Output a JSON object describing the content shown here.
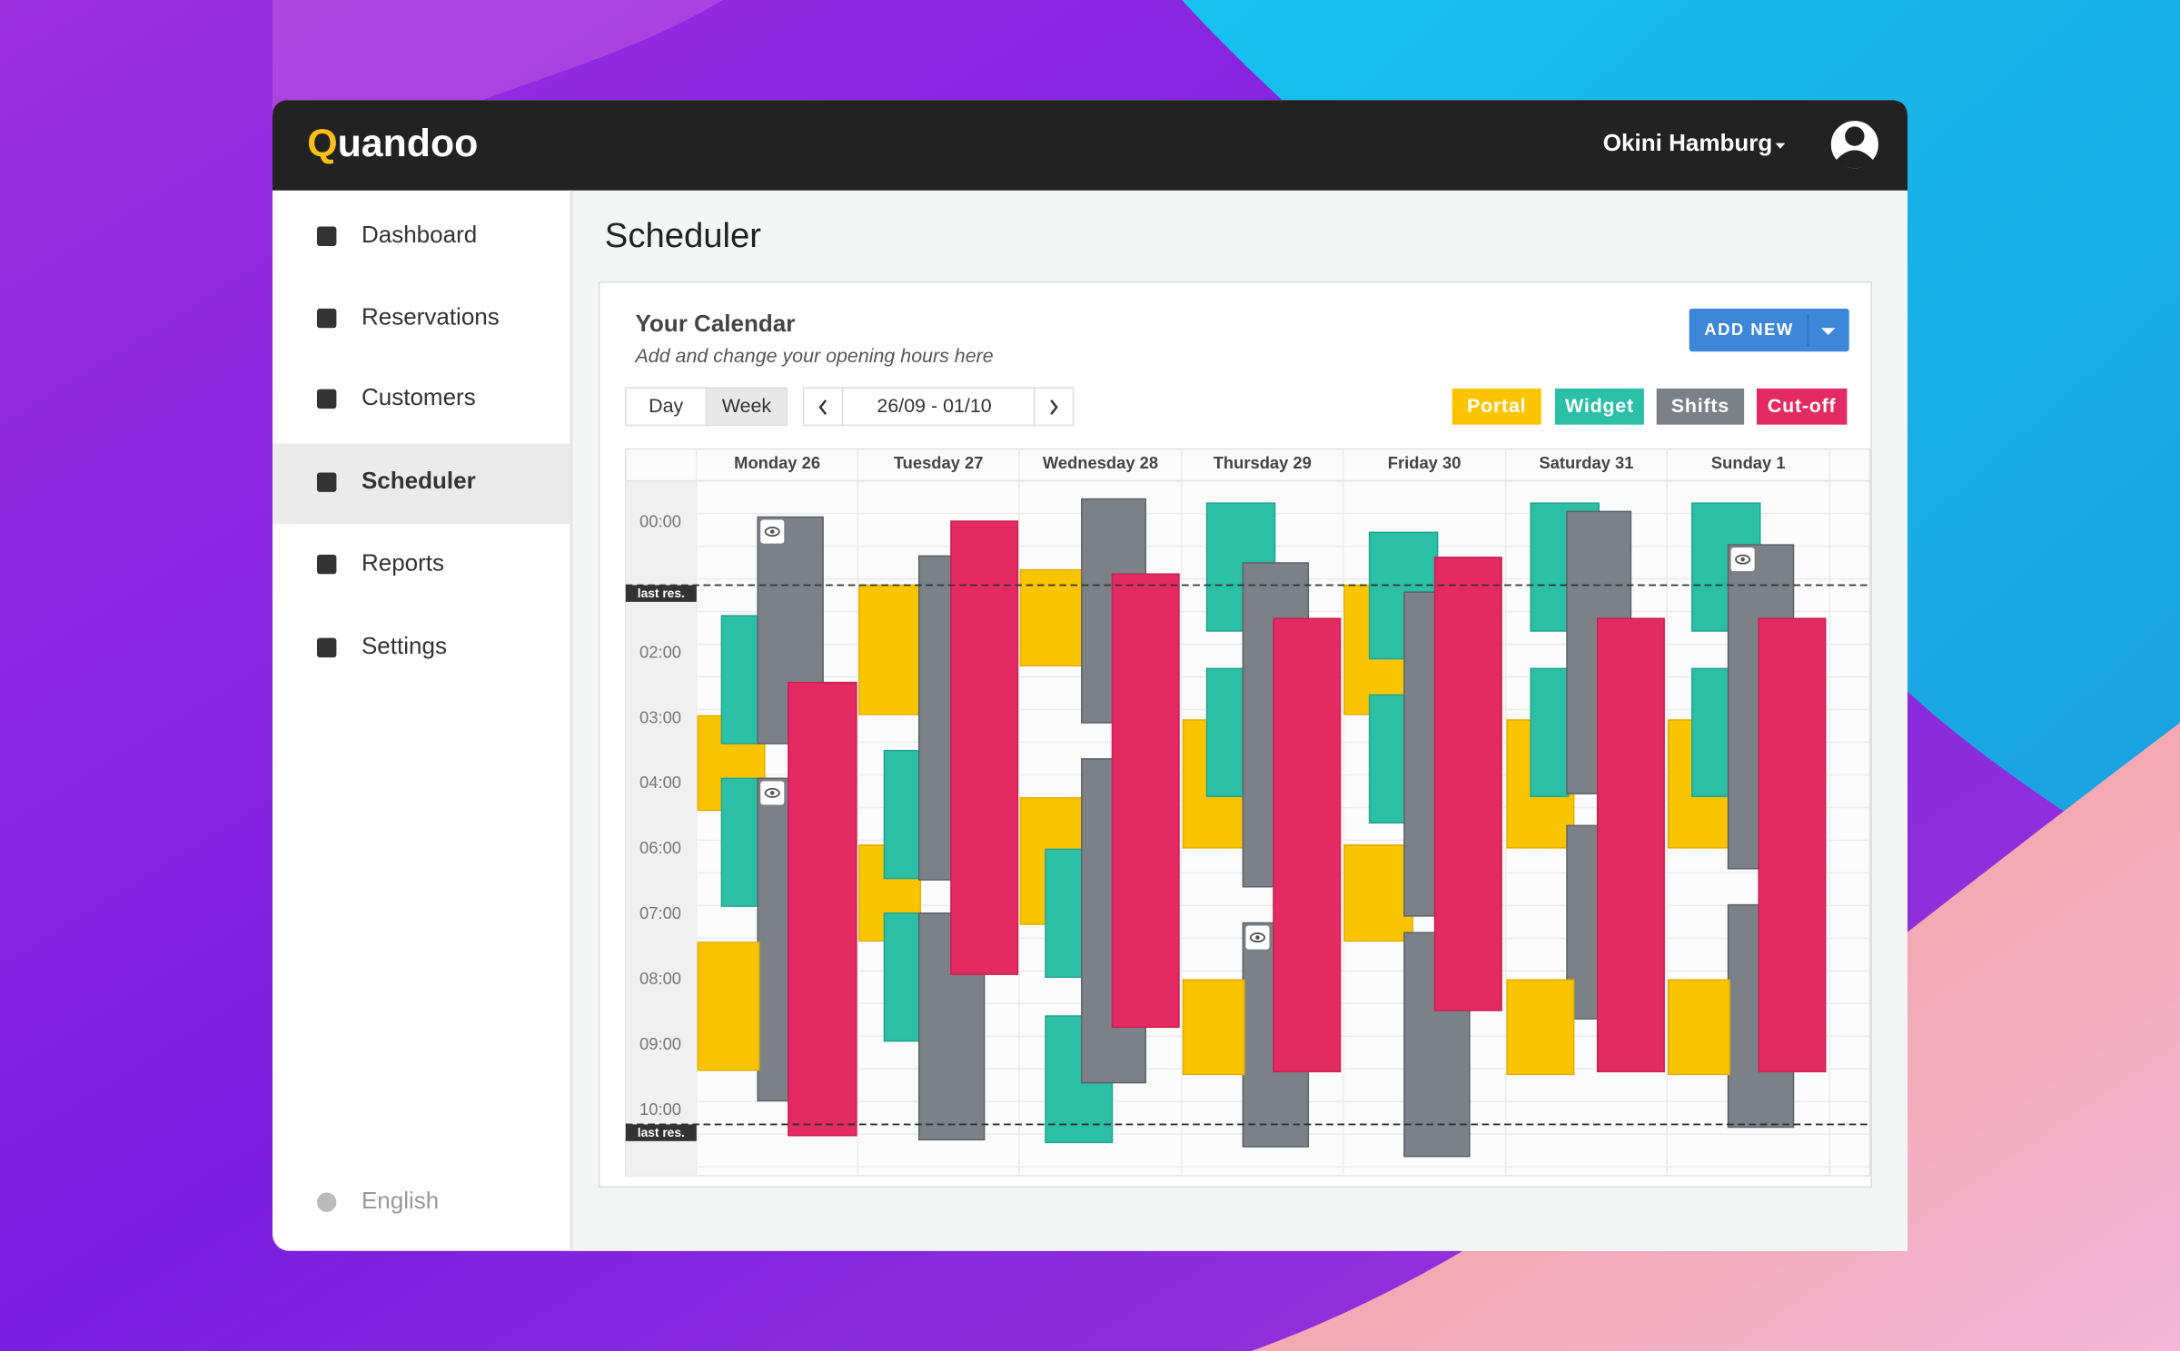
{
  "header": {
    "logo": "Quandoo",
    "user": "Okini Hamburg"
  },
  "sidebar": {
    "items": [
      "Dashboard",
      "Reservations",
      "Customers",
      "Scheduler",
      "Reports",
      "Settings"
    ],
    "active": 3,
    "language": "English"
  },
  "page_title": "Scheduler",
  "calendar": {
    "title": "Your Calendar",
    "subtitle": "Add and change your opening hours here",
    "add_button": "ADD NEW",
    "view_buttons": [
      "Day",
      "Week"
    ],
    "active_view": 1,
    "date_range": "26/09 - 01/10",
    "legend": [
      {
        "name": "Portal",
        "color": "#fbc400"
      },
      {
        "name": "Widget",
        "color": "#2bbfa6"
      },
      {
        "name": "Shifts",
        "color": "#7b8187"
      },
      {
        "name": "Cut-off",
        "color": "#e32a62"
      }
    ],
    "days": [
      "Monday 26",
      "Tuesday 27",
      "Wednesday 28",
      "Thursday 29",
      "Friday 30",
      "Saturday 31",
      "Sunday 1"
    ],
    "times": [
      "00:00",
      "02:00",
      "03:00",
      "04:00",
      "06:00",
      "07:00",
      "08:00",
      "09:00",
      "10:00"
    ],
    "last_res_label": "last res."
  }
}
